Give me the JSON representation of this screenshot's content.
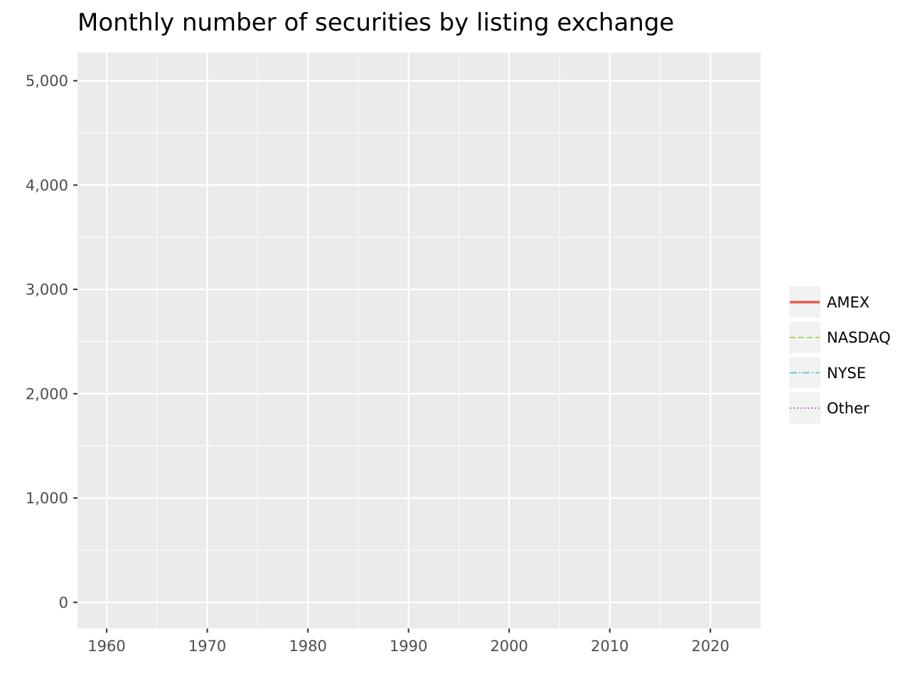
{
  "chart_data": {
    "type": "line",
    "title": "Monthly number of securities by listing exchange",
    "xlabel": "",
    "ylabel": "",
    "x_ticks": [
      "1960",
      "1970",
      "1980",
      "1990",
      "2000",
      "2010",
      "2020"
    ],
    "x_tick_values": [
      1960,
      1970,
      1980,
      1990,
      2000,
      2010,
      2020
    ],
    "y_ticks": [
      "0",
      "1,000",
      "2,000",
      "3,000",
      "4,000",
      "5,000"
    ],
    "y_tick_values": [
      0,
      1000,
      2000,
      3000,
      4000,
      5000
    ],
    "xlim": [
      1957.1,
      2025
    ],
    "ylim": [
      -250,
      5270
    ],
    "grid": true,
    "legend_position": "right",
    "series": [
      {
        "name": "AMEX",
        "color": "#e05a4e",
        "line_style": "solid",
        "x": [],
        "values": []
      },
      {
        "name": "NASDAQ",
        "color": "#9bcd4c",
        "line_style": "dashed",
        "x": [],
        "values": []
      },
      {
        "name": "NYSE",
        "color": "#4fc1d0",
        "line_style": "dashdot",
        "x": [],
        "values": []
      },
      {
        "name": "Other",
        "color": "#a35ccd",
        "line_style": "dotted",
        "x": [],
        "values": []
      }
    ],
    "panel_background": "#ebebeb",
    "grid_color": "#ffffff"
  }
}
